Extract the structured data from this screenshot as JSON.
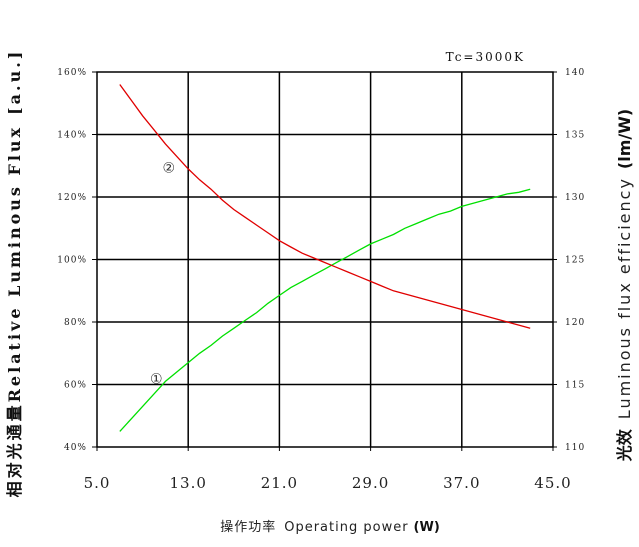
{
  "chart_data": {
    "type": "line",
    "title": "Tc=3000K",
    "xlabel": {
      "cn": "操作功率",
      "en": "Operating power",
      "unit": "(W)"
    },
    "ylabel_left": {
      "cn": "相对光通量",
      "en": "Relative Luminous Flux",
      "unit": "[a.u.]"
    },
    "ylabel_right": {
      "cn": "光效",
      "en": "Luminous flux efficiency",
      "unit": "(lm/W)"
    },
    "xlim": [
      5,
      45
    ],
    "xticks": [
      "5.0",
      "13.0",
      "21.0",
      "29.0",
      "37.0",
      "45.0"
    ],
    "ylim_left": [
      40,
      160
    ],
    "yticks_left": [
      "40%",
      "60%",
      "80%",
      "100%",
      "120%",
      "140%",
      "160%"
    ],
    "ylim_right": [
      110,
      140
    ],
    "yticks_right": [
      "110",
      "115",
      "120",
      "125",
      "130",
      "135",
      "140"
    ],
    "grid": true,
    "series": [
      {
        "marker": "①",
        "axis": "left",
        "color": "#00e000",
        "x": [
          7,
          8,
          9,
          10,
          11,
          12,
          13,
          14,
          15,
          16,
          17,
          18,
          19,
          20,
          21,
          22,
          23,
          24,
          25,
          26,
          27,
          28,
          29,
          30,
          31,
          32,
          33,
          34,
          35,
          36,
          37,
          38,
          39,
          40,
          41,
          42,
          43
        ],
        "y": [
          45,
          49,
          53,
          57,
          61,
          64,
          67,
          70,
          72.5,
          75.5,
          78,
          80.5,
          83,
          86,
          88.5,
          91,
          93,
          95,
          97,
          99,
          101,
          103,
          105,
          106.5,
          108,
          110,
          111.5,
          113,
          114.5,
          115.5,
          117,
          118,
          119,
          120,
          121,
          121.5,
          122.5
        ]
      },
      {
        "marker": "②",
        "axis": "left",
        "color": "#e00000",
        "x": [
          7,
          8,
          9,
          10,
          11,
          12,
          13,
          14,
          15,
          16,
          17,
          18,
          19,
          20,
          21,
          22,
          23,
          24,
          25,
          26,
          27,
          28,
          29,
          30,
          31,
          32,
          33,
          34,
          35,
          36,
          37,
          38,
          39,
          40,
          41,
          42,
          43
        ],
        "y": [
          156,
          151,
          146,
          141.5,
          137,
          133,
          129,
          125.5,
          122.5,
          119,
          116,
          113.5,
          111,
          108.5,
          106,
          104,
          102,
          100.5,
          99,
          97.5,
          96,
          94.5,
          93,
          91.5,
          90,
          89,
          88,
          87,
          86,
          85,
          84,
          83,
          82,
          81,
          80,
          79,
          78
        ]
      }
    ]
  }
}
